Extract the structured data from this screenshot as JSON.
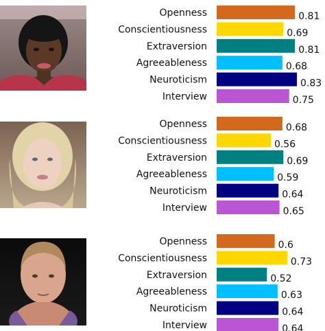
{
  "chart_data": [
    {
      "type": "bar",
      "orientation": "horizontal",
      "photo": "portrait-woman-dark-hair",
      "categories": [
        "Openness",
        "Conscientiousness",
        "Extraversion",
        "Agreeableness",
        "Neuroticism",
        "Interview"
      ],
      "values": [
        0.81,
        0.69,
        0.81,
        0.68,
        0.83,
        0.75
      ],
      "value_labels": [
        "0.81",
        "0.69",
        "0.81",
        "0.68",
        "0.83",
        "0.75"
      ]
    },
    {
      "type": "bar",
      "orientation": "horizontal",
      "photo": "portrait-woman-blonde-hair",
      "categories": [
        "Openness",
        "Conscientiousness",
        "Extraversion",
        "Agreeableness",
        "Neuroticism",
        "Interview"
      ],
      "values": [
        0.68,
        0.56,
        0.69,
        0.59,
        0.64,
        0.65
      ],
      "value_labels": [
        "0.68",
        "0.56",
        "0.69",
        "0.59",
        "0.64",
        "0.65"
      ]
    },
    {
      "type": "bar",
      "orientation": "horizontal",
      "photo": "portrait-man-short-hair",
      "categories": [
        "Openness",
        "Conscientiousness",
        "Extraversion",
        "Agreeableness",
        "Neuroticism",
        "Interview"
      ],
      "values": [
        0.6,
        0.73,
        0.52,
        0.63,
        0.64,
        0.64
      ],
      "value_labels": [
        "0.6",
        "0.73",
        "0.52",
        "0.63",
        "0.64",
        "0.64"
      ]
    }
  ],
  "colors": [
    "#d2691e",
    "#ffd700",
    "#008080",
    "#00bfff",
    "#000080",
    "#ba55d3"
  ]
}
